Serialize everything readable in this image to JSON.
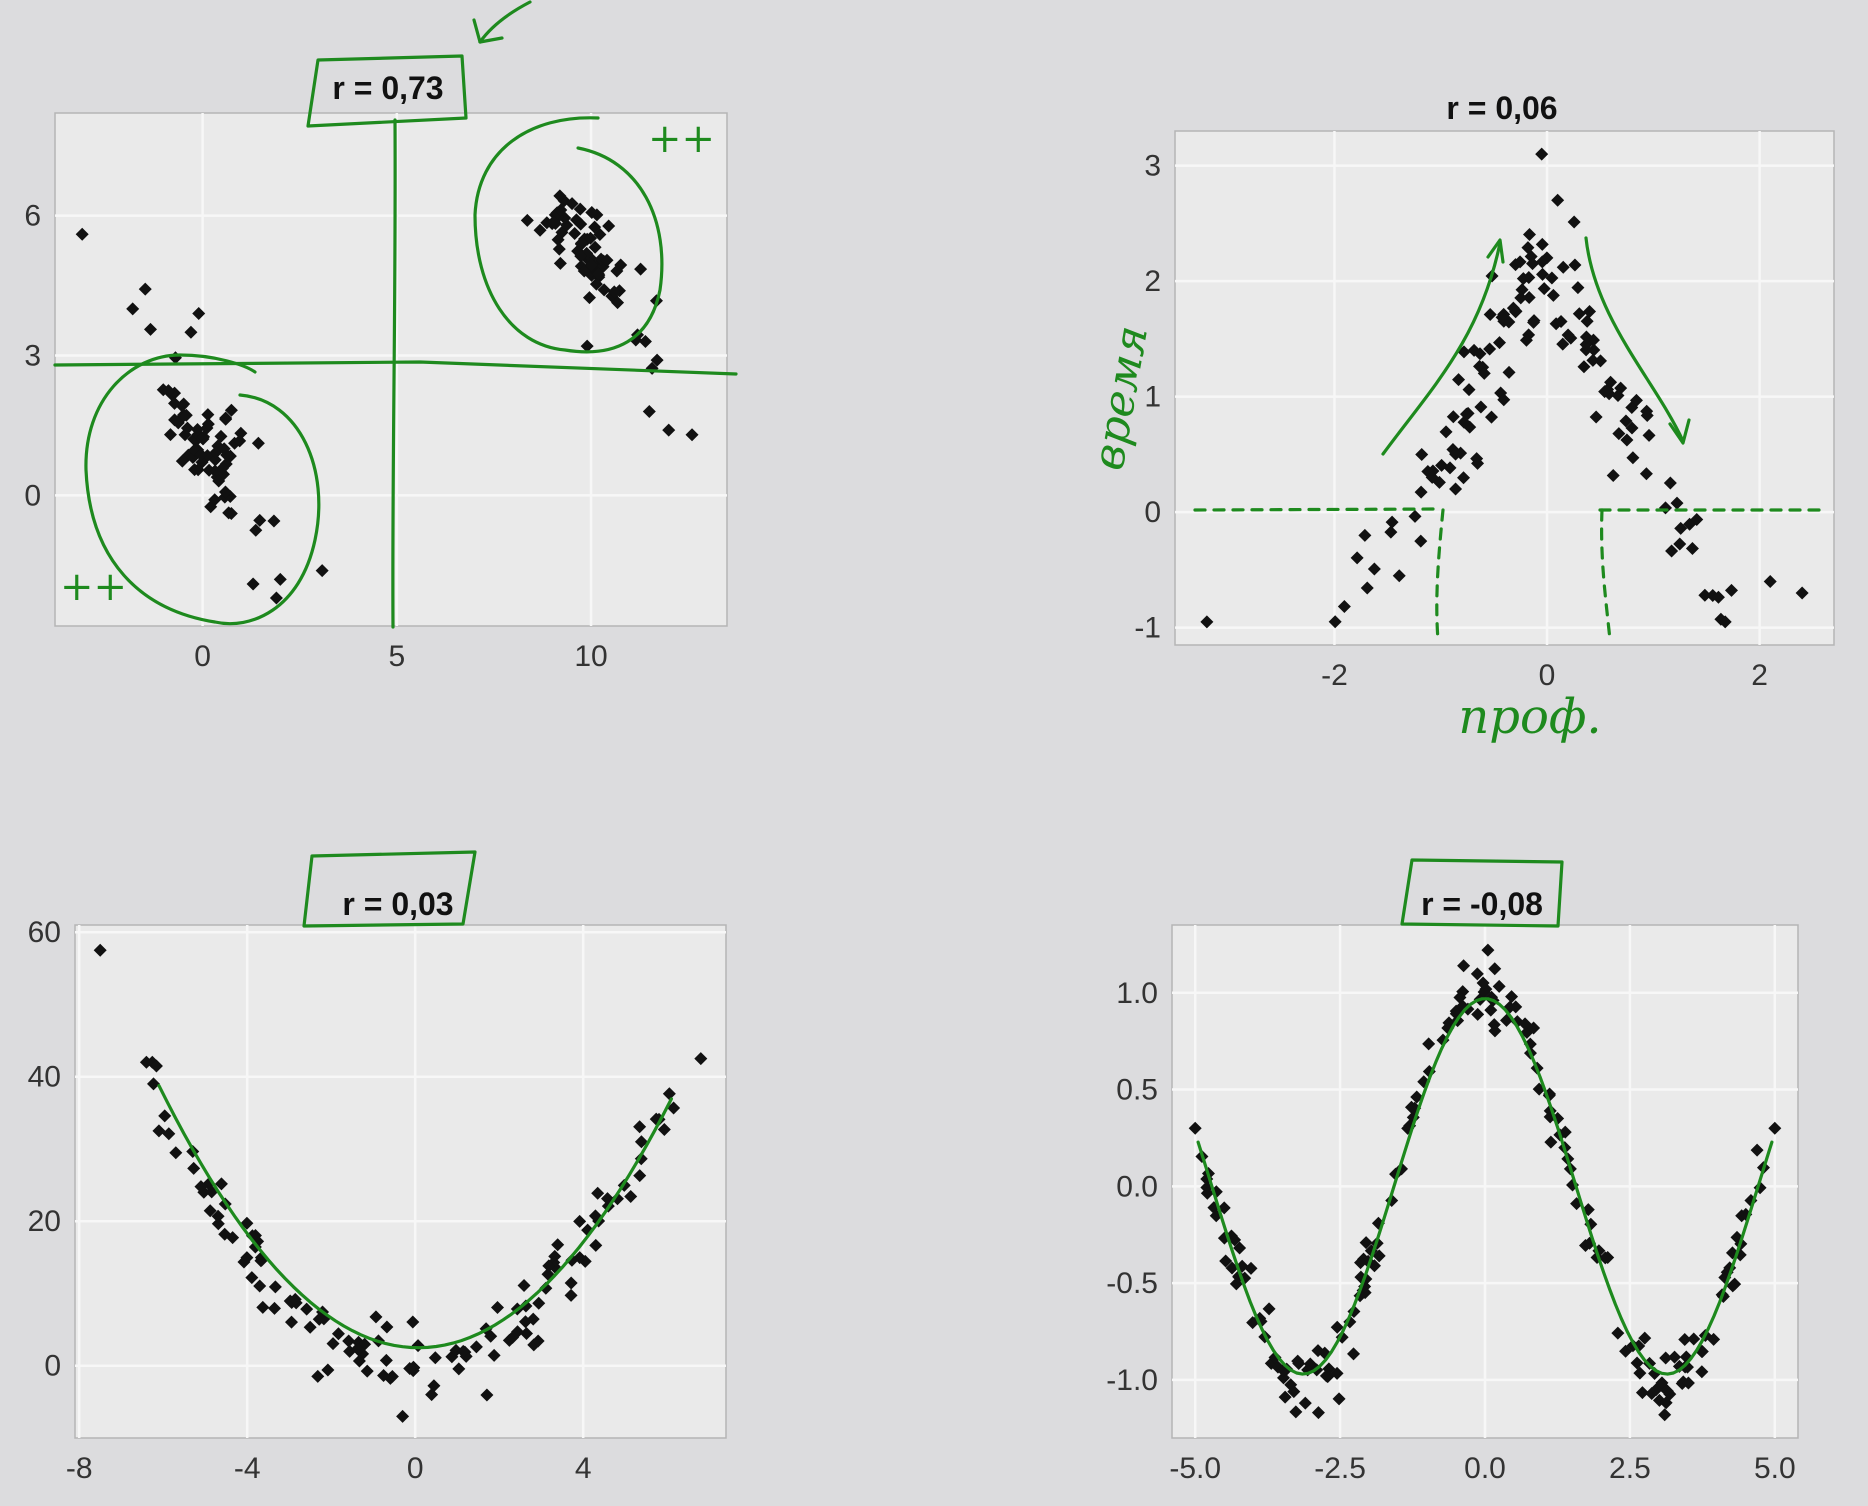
{
  "chart_data": [
    {
      "type": "scatter",
      "title": "r = 0,73",
      "xticks": [
        "0",
        "5",
        "10"
      ],
      "yticks": [
        "0",
        "3",
        "6"
      ],
      "xlim": [
        -3.8,
        13.5
      ],
      "ylim": [
        -2.8,
        8.2
      ],
      "clusters": [
        {
          "cx": 0.1,
          "cy": 1.1,
          "n": 70,
          "sx": 0.9,
          "sy": 1.1,
          "slope": -1.1
        },
        {
          "cx": 9.8,
          "cy": 5.3,
          "n": 70,
          "sx": 0.9,
          "sy": 1.0,
          "slope": -1.1
        }
      ],
      "extra_points": [
        [
          -3.1,
          5.6
        ],
        [
          -1.8,
          4.0
        ],
        [
          -0.1,
          3.9
        ],
        [
          1.3,
          -1.9
        ],
        [
          1.9,
          -2.2
        ],
        [
          2.0,
          -1.8
        ],
        [
          11.4,
          3.3
        ],
        [
          11.5,
          1.8
        ],
        [
          11.7,
          2.9
        ],
        [
          12.0,
          1.4
        ],
        [
          12.6,
          1.3
        ],
        [
          9.9,
          3.2
        ]
      ],
      "annotations": {
        "plus_top": "++",
        "plus_bottom": "++"
      }
    },
    {
      "type": "scatter",
      "title": "r = 0,06",
      "xticks": [
        "-2",
        "0",
        "2"
      ],
      "yticks": [
        "-1",
        "0",
        "1",
        "2",
        "3"
      ],
      "xlim": [
        -3.5,
        2.7
      ],
      "ylim": [
        -1.15,
        3.3
      ],
      "pattern": "tent",
      "n": 140,
      "extra_points": [
        [
          -3.2,
          -0.95
        ],
        [
          -0.05,
          3.1
        ],
        [
          0.1,
          2.7
        ],
        [
          2.4,
          -0.7
        ],
        [
          2.1,
          -0.6
        ]
      ],
      "annotations": {
        "ylabel": "время",
        "xlabel": "проф."
      }
    },
    {
      "type": "scatter",
      "title": "r = 0,03",
      "xticks": [
        "-8",
        "-4",
        "0",
        "4"
      ],
      "yticks": [
        "0",
        "20",
        "40",
        "60"
      ],
      "xlim": [
        -8.1,
        7.4
      ],
      "ylim": [
        -10,
        61
      ],
      "pattern": "parabola",
      "n": 130,
      "extra_points": [
        [
          -7.5,
          57.5
        ],
        [
          6.8,
          42.5
        ],
        [
          -6.4,
          42.0
        ],
        [
          -0.3,
          -7.0
        ]
      ]
    },
    {
      "type": "scatter",
      "title": "r = -0,08",
      "xticks": [
        "-5.0",
        "-2.5",
        "0.0",
        "2.5",
        "5.0"
      ],
      "yticks": [
        "-1.0",
        "-0.5",
        "0.0",
        "0.5",
        "1.0"
      ],
      "xlim": [
        -5.4,
        5.4
      ],
      "ylim": [
        -1.3,
        1.35
      ],
      "pattern": "cosine",
      "n": 190,
      "extra_points": [
        [
          -5.0,
          0.3
        ],
        [
          5.0,
          0.3
        ],
        [
          0.05,
          1.22
        ],
        [
          -3.1,
          -1.12
        ],
        [
          3.1,
          -1.18
        ]
      ]
    }
  ]
}
